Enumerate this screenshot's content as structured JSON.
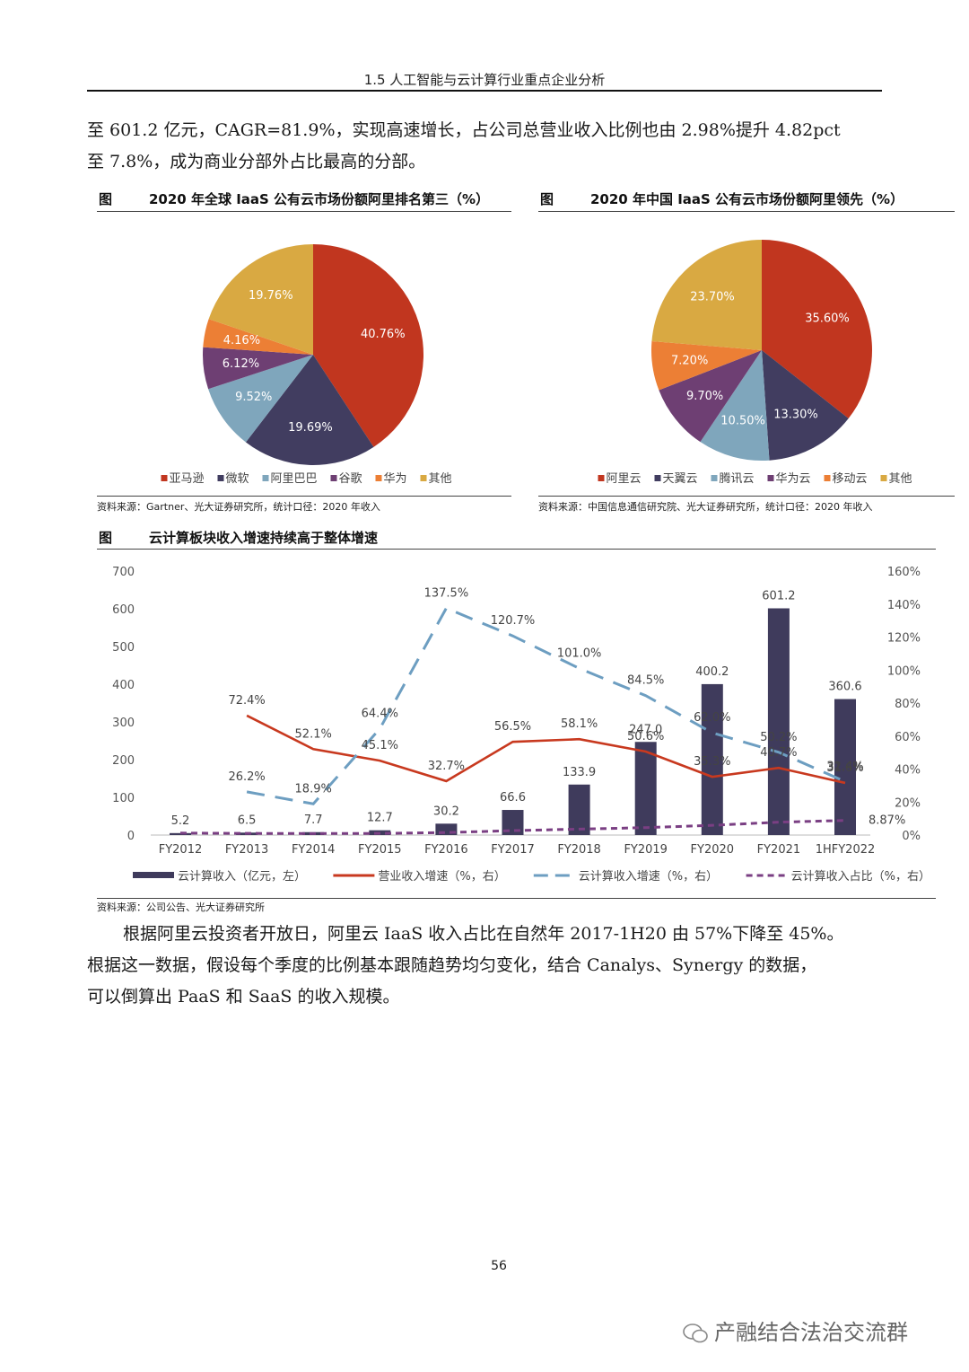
{
  "header": {
    "title": "1.5 人工智能与云计算行业重点企业分析"
  },
  "intro_paragraph": {
    "line1": "至 601.2 亿元，CAGR=81.9%，实现高速增长，占公司总营业收入比例也由 2.98%提升 4.82pct",
    "line2": "至 7.8%，成为商业分部外占比最高的分部。"
  },
  "figure_left": {
    "tag": "图",
    "title": "2020 年全球 IaaS 公有云市场份额阿里排名第三（%）",
    "source": "资料来源：Gartner、光大证券研究所，统计口径：2020 年收入"
  },
  "figure_right": {
    "tag": "图",
    "title": "2020 年中国 IaaS 公有云市场份额阿里领先（%）",
    "source": "资料来源：中国信息通信研究院、光大证券研究所，统计口径：2020 年收入"
  },
  "figure_bottom": {
    "tag": "图",
    "title": "云计算板块收入增速持续高于整体增速",
    "source": "资料来源：公司公告、光大证券研究所"
  },
  "chart_data": [
    {
      "type": "pie",
      "categories": [
        "亚马逊",
        "微软",
        "阿里巴巴",
        "谷歌",
        "华为",
        "其他"
      ],
      "values": [
        40.76,
        19.69,
        9.52,
        6.12,
        4.16,
        19.76
      ],
      "labels": [
        "40.76%",
        "19.69%",
        "9.52%",
        "6.12%",
        "4.16%",
        "19.76%"
      ],
      "colors": [
        "#c1361f",
        "#413d60",
        "#7fa6bc",
        "#6e3f73",
        "#ec7f35",
        "#d9a942"
      ],
      "legend_position": "bottom"
    },
    {
      "type": "pie",
      "categories": [
        "阿里云",
        "天翼云",
        "腾讯云",
        "华为云",
        "移动云",
        "其他"
      ],
      "values": [
        35.6,
        13.3,
        10.5,
        9.7,
        7.2,
        23.7
      ],
      "labels": [
        "35.60%",
        "13.30%",
        "10.50%",
        "9.70%",
        "7.20%",
        "23.70%"
      ],
      "colors": [
        "#c1361f",
        "#413d60",
        "#7fa6bc",
        "#6e3f73",
        "#ec7f35",
        "#d9a942"
      ],
      "legend_position": "bottom"
    },
    {
      "type": "bar",
      "categories": [
        "FY2012",
        "FY2013",
        "FY2014",
        "FY2015",
        "FY2016",
        "FY2017",
        "FY2018",
        "FY2019",
        "FY2020",
        "FY2021",
        "1HFY2022"
      ],
      "left_axis": {
        "ylim": [
          0,
          700
        ],
        "ticks": [
          "0",
          "100",
          "200",
          "300",
          "400",
          "500",
          "600",
          "700"
        ]
      },
      "right_axis": {
        "ylim": [
          0,
          160
        ],
        "ticks": [
          "0%",
          "20%",
          "40%",
          "60%",
          "80%",
          "100%",
          "120%",
          "140%",
          "160%"
        ]
      },
      "legend_position": "bottom",
      "series": [
        {
          "name": "云计算收入（亿元，左）",
          "type": "bar",
          "axis": "left",
          "color": "#3f3b5c",
          "values": [
            5.2,
            6.5,
            7.7,
            12.7,
            30.2,
            66.6,
            133.9,
            247.0,
            400.2,
            601.2,
            360.6
          ],
          "labels": [
            "5.2",
            "6.5",
            "7.7",
            "12.7",
            "30.2",
            "66.6",
            "133.9",
            "247.0",
            "400.2",
            "601.2",
            "360.6"
          ]
        },
        {
          "name": "营业收入增速（%，右）",
          "type": "line",
          "axis": "right",
          "color": "#c8391f",
          "values": [
            null,
            72.4,
            52.1,
            45.1,
            32.7,
            56.5,
            58.1,
            50.6,
            35.3,
            40.7,
            31.6
          ],
          "labels": [
            "",
            "72.4%",
            "52.1%",
            "45.1%",
            "32.7%",
            "56.5%",
            "58.1%",
            "50.6%",
            "35.3%",
            "40.7%",
            "31.6%"
          ]
        },
        {
          "name": "云计算收入增速（%，右）",
          "type": "line",
          "style": "dashed",
          "axis": "right",
          "color": "#6d9ec1",
          "values": [
            null,
            26.2,
            18.9,
            64.4,
            137.5,
            120.7,
            101.0,
            84.5,
            62.0,
            50.2,
            32.4
          ],
          "labels": [
            "",
            "26.2%",
            "18.9%",
            "64.4%",
            "137.5%",
            "120.7%",
            "101.0%",
            "84.5%",
            "62.0%",
            "50.2%",
            "32.4%"
          ]
        },
        {
          "name": "云计算收入占比（%，右）",
          "type": "line",
          "style": "dashed",
          "axis": "right",
          "color": "#7a3f83",
          "values": [
            1.2,
            1.0,
            0.9,
            1.0,
            1.5,
            2.7,
            3.6,
            4.5,
            5.9,
            7.8,
            8.87
          ],
          "labels": [
            "",
            "",
            "",
            "",
            "",
            "",
            "",
            "",
            "",
            "",
            "8.87%"
          ]
        }
      ]
    }
  ],
  "closing_paragraph": {
    "line1": "根据阿里云投资者开放日，阿里云 IaaS 收入占比在自然年 2017-1H20 由 57%下降至 45%。",
    "line2": "根据这一数据，假设每个季度的比例基本跟随趋势均匀变化，结合 Canalys、Synergy 的数据，",
    "line3": "可以倒算出 PaaS 和 SaaS 的收入规模。"
  },
  "footer": {
    "page_number": "56",
    "watermark": "产融结合法治交流群"
  }
}
